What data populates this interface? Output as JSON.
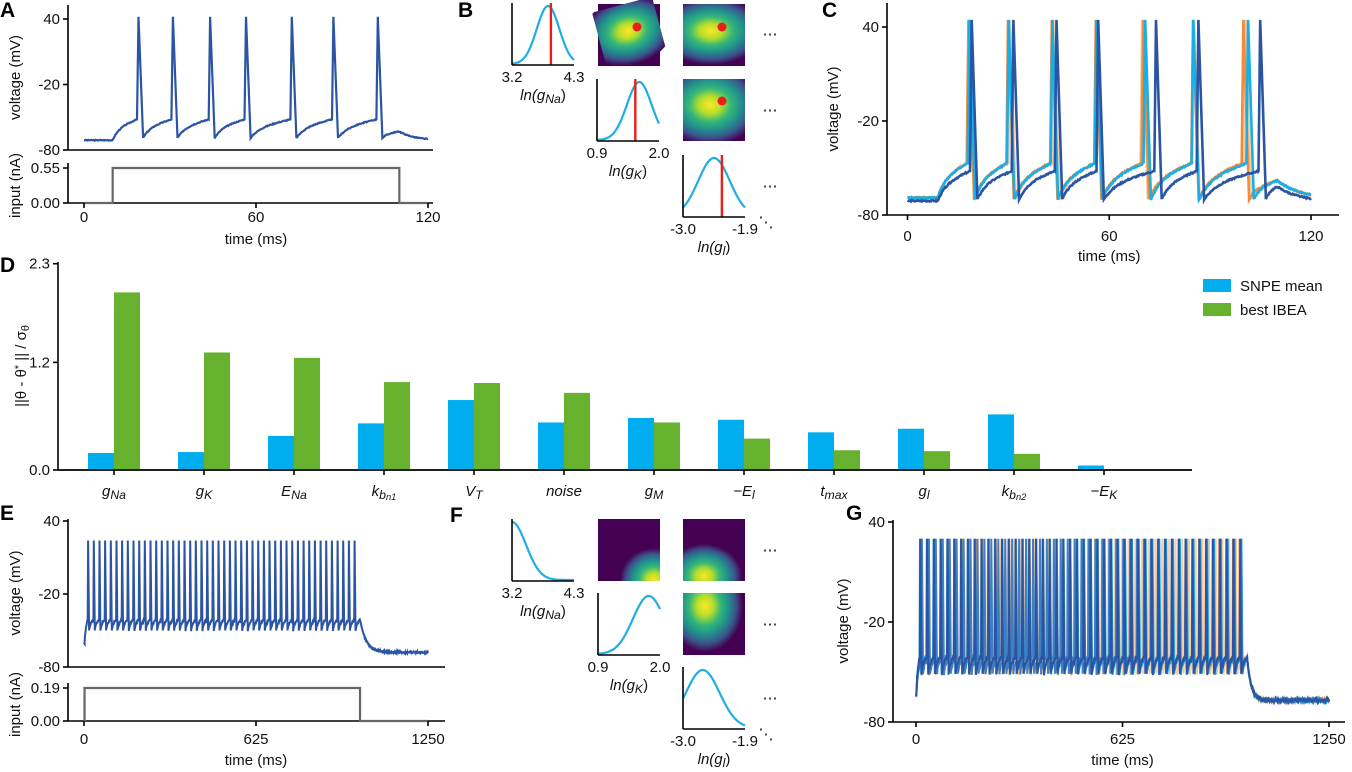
{
  "colors": {
    "dark_blue": "#2b55a3",
    "light_blue": "#19aee6",
    "mid_blue": "#3f7fc4",
    "orange": "#f28c3b",
    "light_orange": "#f8cfa4",
    "stimulus": "#666666",
    "posterior": "#1faee3",
    "true_param": "#e8201c",
    "snpe": "#00aeef",
    "ibea": "#66b22e"
  },
  "chart_data": [
    {
      "letter": "A",
      "type": "line",
      "ylabel": "voltage (mV)",
      "yticks": [
        "40",
        "-20",
        "-80"
      ],
      "ylim": [
        -80,
        45
      ],
      "ylabel2": "input (nA)",
      "yticks2": [
        "0.55",
        "0.00"
      ],
      "xlabel": "time (ms)",
      "xticks": [
        "0",
        "60",
        "120"
      ],
      "xlim": [
        0,
        120
      ],
      "stimulus": {
        "on_ms": 10,
        "off_ms": 110,
        "amplitude_nA": 0.55
      },
      "series": [
        {
          "color": "#2b55a3",
          "resting_mV": -71,
          "peak_mV": 42,
          "spike_times_ms": [
            19,
            31,
            44,
            56.5,
            72.5,
            87,
            102.5
          ]
        }
      ]
    },
    {
      "letter": "B",
      "type": "line",
      "marginals": [
        {
          "xlabel": {
            "base": "ln(g",
            "sub": "Na",
            "end": ")"
          },
          "xticks": [
            "3.2",
            "4.3"
          ],
          "xlim": [
            3.2,
            4.3
          ],
          "peak": 3.84,
          "sd": 0.2,
          "true_value": 3.89
        },
        {
          "xlabel": {
            "base": "ln(g",
            "sub": "K",
            "end": ")"
          },
          "xticks": [
            "0.9",
            "2.0"
          ],
          "xlim": [
            0.9,
            2.0
          ],
          "peak": 1.65,
          "sd": 0.22,
          "true_value": 1.58
        },
        {
          "xlabel": {
            "base": "ln(g",
            "sub": "l",
            "end": ")"
          },
          "xticks": [
            "-3.0",
            "-1.9"
          ],
          "xlim": [
            -3.0,
            -1.9
          ],
          "peak": -2.45,
          "sd": 0.28,
          "true_value": -2.31
        }
      ],
      "ellipsis": "⋯",
      "diag_ellipsis": "⋱"
    },
    {
      "letter": "C",
      "type": "line",
      "ylabel": "voltage (mV)",
      "yticks": [
        "40",
        "-20",
        "-80"
      ],
      "ylim": [
        -80,
        45
      ],
      "xlabel": "time (ms)",
      "xticks": [
        "0",
        "60",
        "120"
      ],
      "xlim": [
        0,
        120
      ],
      "series": [
        {
          "color": "#f8cfa4",
          "spike_times_ms": [
            18.3,
            30.5,
            43.5,
            56.5,
            69.8,
            85.2,
            100.5
          ]
        },
        {
          "color": "#f28c3b",
          "spike_times_ms": [
            18.1,
            29.9,
            42.9,
            56,
            70.1,
            84.9,
            99.9
          ]
        },
        {
          "color": "#19aee6",
          "spike_times_ms": [
            18.4,
            30.1,
            43.1,
            56.2,
            70.7,
            85,
            101.3
          ]
        },
        {
          "color": "#2b55a3",
          "spike_times_ms": [
            19.1,
            31.5,
            44.3,
            56.7,
            73.9,
            86.5,
            104.9
          ]
        }
      ]
    },
    {
      "letter": "D",
      "type": "bar",
      "ylabel": {
        "a": "||θ - θ",
        "sup": "*",
        "b": " || / σ",
        "sub": "θ"
      },
      "yticks": [
        "2.3",
        "1.2",
        "0.0"
      ],
      "ylim": [
        0,
        2.3
      ],
      "categories": [
        {
          "base": "g",
          "sub": "Na"
        },
        {
          "base": "g",
          "sub": "K"
        },
        {
          "base": "E",
          "sub": "Na"
        },
        {
          "base": "k",
          "sub": "b",
          "subsub": "n1"
        },
        {
          "base": "V",
          "sub": "T"
        },
        {
          "base": "noise"
        },
        {
          "base": "g",
          "sub": "M"
        },
        {
          "base": "−E",
          "sub": "l"
        },
        {
          "base": "t",
          "sub": "max"
        },
        {
          "base": "g",
          "sub": "l"
        },
        {
          "base": "k",
          "sub": "b",
          "subsub": "n2"
        },
        {
          "base": "−E",
          "sub": "K"
        }
      ],
      "legend_position": "top-right",
      "series": [
        {
          "name": "SNPE mean",
          "color": "#00aeef",
          "values": [
            0.19,
            0.2,
            0.38,
            0.52,
            0.78,
            0.53,
            0.58,
            0.56,
            0.42,
            0.46,
            0.62,
            0.05
          ]
        },
        {
          "name": "best IBEA",
          "color": "#66b22e",
          "values": [
            1.98,
            1.31,
            1.25,
            0.98,
            0.97,
            0.86,
            0.53,
            0.35,
            0.22,
            0.21,
            0.18,
            0.0
          ]
        }
      ]
    },
    {
      "letter": "E",
      "type": "line",
      "ylabel": "voltage (mV)",
      "yticks": [
        "40",
        "-20",
        "-80"
      ],
      "ylim": [
        -80,
        40
      ],
      "ylabel2": "input (nA)",
      "yticks2": [
        "0.19",
        "0.00"
      ],
      "xlabel": "time (ms)",
      "xticks": [
        "0",
        "625",
        "1250"
      ],
      "xlim": [
        0,
        1250
      ],
      "stimulus": {
        "on_ms": 2,
        "off_ms": 1003,
        "amplitude_nA": 0.19
      },
      "series": [
        {
          "color": "#2b55a3",
          "first_spike_ms": 15,
          "spike_count": 48,
          "peak_mV": 24
        }
      ]
    },
    {
      "letter": "F",
      "type": "line",
      "marginals": [
        {
          "xlabel": {
            "base": "ln(g",
            "sub": "Na",
            "end": ")"
          },
          "xticks": [
            "3.2",
            "4.3"
          ],
          "xlim": [
            3.2,
            4.3
          ],
          "peak": 3.2,
          "sd": 0.25
        },
        {
          "xlabel": {
            "base": "ln(g",
            "sub": "K",
            "end": ")"
          },
          "xticks": [
            "0.9",
            "2.0"
          ],
          "xlim": [
            0.9,
            2.0
          ],
          "peak": 1.8,
          "sd": 0.28
        },
        {
          "xlabel": {
            "base": "ln(g",
            "sub": "l",
            "end": ")"
          },
          "xticks": [
            "-3.0",
            "-1.9"
          ],
          "xlim": [
            -3.0,
            -1.9
          ],
          "peak": -2.65,
          "sd": 0.3
        }
      ],
      "ellipsis": "⋯",
      "diag_ellipsis": "⋱"
    },
    {
      "letter": "G",
      "type": "line",
      "ylabel": "voltage (mV)",
      "yticks": [
        "40",
        "-20",
        "-80"
      ],
      "ylim": [
        -80,
        40
      ],
      "xlabel": "time (ms)",
      "xticks": [
        "0",
        "625",
        "1250"
      ],
      "xlim": [
        0,
        1250
      ],
      "series": [
        {
          "color": "#f8cfa4",
          "first_spike_ms": 14,
          "spike_count": 48
        },
        {
          "color": "#f28c3b",
          "first_spike_ms": 16,
          "spike_count": 48
        },
        {
          "color": "#19aee6",
          "first_spike_ms": 12,
          "spike_count": 48
        },
        {
          "color": "#3f7fc4",
          "first_spike_ms": 18,
          "spike_count": 47
        },
        {
          "color": "#2b55a3",
          "first_spike_ms": 13,
          "spike_count": 48
        }
      ]
    }
  ]
}
